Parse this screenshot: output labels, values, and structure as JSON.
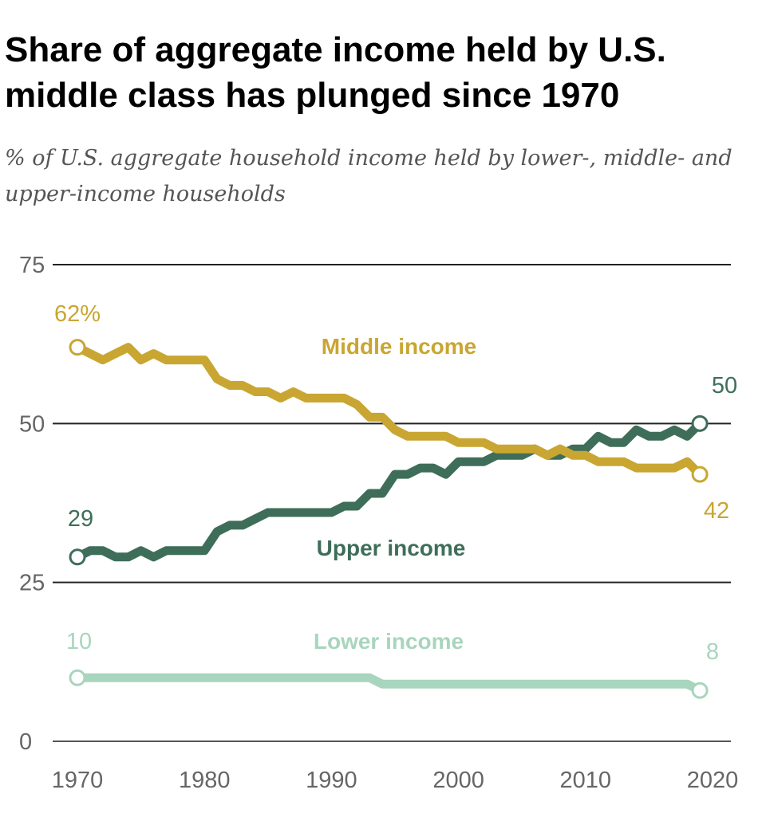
{
  "title": "Share of aggregate income held by U.S. middle class has plunged since 1970",
  "subtitle": "% of U.S. aggregate household income held by lower-, middle- and upper-income households",
  "chart_data": {
    "type": "line",
    "title": "Share of aggregate income held by U.S. middle class has plunged since 1970",
    "subtitle": "% of U.S. aggregate household income held by lower-, middle- and upper-income households",
    "xlabel": "",
    "ylabel": "",
    "xlim": [
      1970,
      2020
    ],
    "ylim": [
      0,
      75
    ],
    "x_ticks": [
      1970,
      1980,
      1990,
      2000,
      2010,
      2020
    ],
    "y_ticks": [
      0,
      25,
      50,
      75
    ],
    "grid": "horizontal",
    "x": [
      1970,
      1971,
      1972,
      1973,
      1974,
      1975,
      1976,
      1977,
      1978,
      1979,
      1980,
      1981,
      1982,
      1983,
      1984,
      1985,
      1986,
      1987,
      1988,
      1989,
      1990,
      1991,
      1992,
      1993,
      1994,
      1995,
      1996,
      1997,
      1998,
      1999,
      2000,
      2001,
      2002,
      2003,
      2004,
      2005,
      2006,
      2007,
      2008,
      2009,
      2010,
      2011,
      2012,
      2013,
      2014,
      2015,
      2016,
      2017,
      2018,
      2019
    ],
    "series": [
      {
        "name": "Middle income",
        "color": "#C9A632",
        "start_label": "62%",
        "end_label": "42",
        "values": [
          62,
          61,
          60,
          61,
          62,
          60,
          61,
          60,
          60,
          60,
          60,
          57,
          56,
          56,
          55,
          55,
          54,
          55,
          54,
          54,
          54,
          54,
          53,
          51,
          51,
          49,
          48,
          48,
          48,
          48,
          47,
          47,
          47,
          46,
          46,
          46,
          46,
          45,
          46,
          45,
          45,
          44,
          44,
          44,
          43,
          43,
          43,
          43,
          44,
          42
        ]
      },
      {
        "name": "Upper income",
        "color": "#3E6E59",
        "start_label": "29",
        "end_label": "50",
        "values": [
          29,
          30,
          30,
          29,
          29,
          30,
          29,
          30,
          30,
          30,
          30,
          33,
          34,
          34,
          35,
          36,
          36,
          36,
          36,
          36,
          36,
          37,
          37,
          39,
          39,
          42,
          42,
          43,
          43,
          42,
          44,
          44,
          44,
          45,
          45,
          45,
          46,
          45,
          45,
          46,
          46,
          48,
          47,
          47,
          49,
          48,
          48,
          49,
          48,
          50
        ]
      },
      {
        "name": "Lower income",
        "color": "#A8D5BD",
        "start_label": "10",
        "end_label": "8",
        "values": [
          10,
          10,
          10,
          10,
          10,
          10,
          10,
          10,
          10,
          10,
          10,
          10,
          10,
          10,
          10,
          10,
          10,
          10,
          10,
          10,
          10,
          10,
          10,
          10,
          9,
          9,
          9,
          9,
          9,
          9,
          9,
          9,
          9,
          9,
          9,
          9,
          9,
          9,
          9,
          9,
          9,
          9,
          9,
          9,
          9,
          9,
          9,
          9,
          9,
          8
        ]
      }
    ]
  }
}
